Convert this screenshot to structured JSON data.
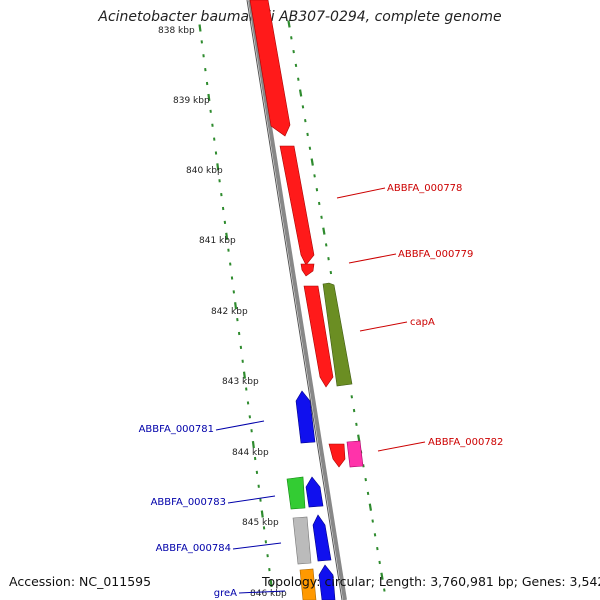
{
  "title": "Acinetobacter baumannii AB307-0294, complete genome",
  "accession": "Accession: NC_011595",
  "stats": "Topology: circular; Length: 3,760,981 bp; Genes: 3,542",
  "scale_labels": [
    "838 kbp",
    "839 kbp",
    "840 kbp",
    "841 kbp",
    "842 kbp",
    "843 kbp",
    "844 kbp",
    "845 kbp",
    "846 kbp"
  ],
  "gene_labels_right": [
    "ABBFA_000778",
    "ABBFA_000779",
    "capA",
    "ABBFA_000782"
  ],
  "gene_labels_left": [
    "ABBFA_000781",
    "ABBFA_000783",
    "ABBFA_000784",
    "greA"
  ],
  "colors": {
    "red": "#ff1a1a",
    "olive": "#6b8e23",
    "blue": "#1010ee",
    "green": "#33cc33",
    "pink": "#ff33aa",
    "gray": "#bbbbbb",
    "orange": "#ff9900",
    "backbone": "#888888",
    "tick": "#2e8b2e",
    "label_red": "#cc0000",
    "label_blue": "#0000aa"
  }
}
